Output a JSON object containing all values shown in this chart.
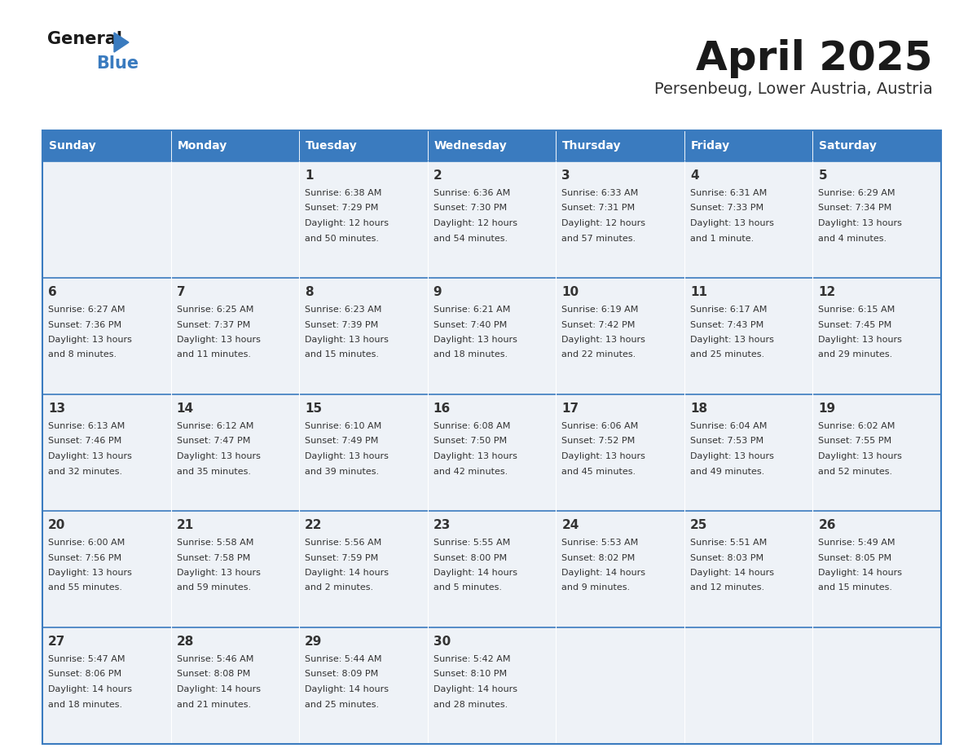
{
  "title": "April 2025",
  "subtitle": "Persenbeug, Lower Austria, Austria",
  "header_color": "#3a7bbf",
  "header_text_color": "#ffffff",
  "cell_bg_even": "#eef2f7",
  "cell_bg_odd": "#ffffff",
  "text_color": "#333333",
  "border_color": "#3a7bbf",
  "separator_color": "#4a86c8",
  "days_of_week": [
    "Sunday",
    "Monday",
    "Tuesday",
    "Wednesday",
    "Thursday",
    "Friday",
    "Saturday"
  ],
  "weeks": [
    [
      {
        "day": "",
        "info": ""
      },
      {
        "day": "",
        "info": ""
      },
      {
        "day": "1",
        "info": "Sunrise: 6:38 AM\nSunset: 7:29 PM\nDaylight: 12 hours\nand 50 minutes."
      },
      {
        "day": "2",
        "info": "Sunrise: 6:36 AM\nSunset: 7:30 PM\nDaylight: 12 hours\nand 54 minutes."
      },
      {
        "day": "3",
        "info": "Sunrise: 6:33 AM\nSunset: 7:31 PM\nDaylight: 12 hours\nand 57 minutes."
      },
      {
        "day": "4",
        "info": "Sunrise: 6:31 AM\nSunset: 7:33 PM\nDaylight: 13 hours\nand 1 minute."
      },
      {
        "day": "5",
        "info": "Sunrise: 6:29 AM\nSunset: 7:34 PM\nDaylight: 13 hours\nand 4 minutes."
      }
    ],
    [
      {
        "day": "6",
        "info": "Sunrise: 6:27 AM\nSunset: 7:36 PM\nDaylight: 13 hours\nand 8 minutes."
      },
      {
        "day": "7",
        "info": "Sunrise: 6:25 AM\nSunset: 7:37 PM\nDaylight: 13 hours\nand 11 minutes."
      },
      {
        "day": "8",
        "info": "Sunrise: 6:23 AM\nSunset: 7:39 PM\nDaylight: 13 hours\nand 15 minutes."
      },
      {
        "day": "9",
        "info": "Sunrise: 6:21 AM\nSunset: 7:40 PM\nDaylight: 13 hours\nand 18 minutes."
      },
      {
        "day": "10",
        "info": "Sunrise: 6:19 AM\nSunset: 7:42 PM\nDaylight: 13 hours\nand 22 minutes."
      },
      {
        "day": "11",
        "info": "Sunrise: 6:17 AM\nSunset: 7:43 PM\nDaylight: 13 hours\nand 25 minutes."
      },
      {
        "day": "12",
        "info": "Sunrise: 6:15 AM\nSunset: 7:45 PM\nDaylight: 13 hours\nand 29 minutes."
      }
    ],
    [
      {
        "day": "13",
        "info": "Sunrise: 6:13 AM\nSunset: 7:46 PM\nDaylight: 13 hours\nand 32 minutes."
      },
      {
        "day": "14",
        "info": "Sunrise: 6:12 AM\nSunset: 7:47 PM\nDaylight: 13 hours\nand 35 minutes."
      },
      {
        "day": "15",
        "info": "Sunrise: 6:10 AM\nSunset: 7:49 PM\nDaylight: 13 hours\nand 39 minutes."
      },
      {
        "day": "16",
        "info": "Sunrise: 6:08 AM\nSunset: 7:50 PM\nDaylight: 13 hours\nand 42 minutes."
      },
      {
        "day": "17",
        "info": "Sunrise: 6:06 AM\nSunset: 7:52 PM\nDaylight: 13 hours\nand 45 minutes."
      },
      {
        "day": "18",
        "info": "Sunrise: 6:04 AM\nSunset: 7:53 PM\nDaylight: 13 hours\nand 49 minutes."
      },
      {
        "day": "19",
        "info": "Sunrise: 6:02 AM\nSunset: 7:55 PM\nDaylight: 13 hours\nand 52 minutes."
      }
    ],
    [
      {
        "day": "20",
        "info": "Sunrise: 6:00 AM\nSunset: 7:56 PM\nDaylight: 13 hours\nand 55 minutes."
      },
      {
        "day": "21",
        "info": "Sunrise: 5:58 AM\nSunset: 7:58 PM\nDaylight: 13 hours\nand 59 minutes."
      },
      {
        "day": "22",
        "info": "Sunrise: 5:56 AM\nSunset: 7:59 PM\nDaylight: 14 hours\nand 2 minutes."
      },
      {
        "day": "23",
        "info": "Sunrise: 5:55 AM\nSunset: 8:00 PM\nDaylight: 14 hours\nand 5 minutes."
      },
      {
        "day": "24",
        "info": "Sunrise: 5:53 AM\nSunset: 8:02 PM\nDaylight: 14 hours\nand 9 minutes."
      },
      {
        "day": "25",
        "info": "Sunrise: 5:51 AM\nSunset: 8:03 PM\nDaylight: 14 hours\nand 12 minutes."
      },
      {
        "day": "26",
        "info": "Sunrise: 5:49 AM\nSunset: 8:05 PM\nDaylight: 14 hours\nand 15 minutes."
      }
    ],
    [
      {
        "day": "27",
        "info": "Sunrise: 5:47 AM\nSunset: 8:06 PM\nDaylight: 14 hours\nand 18 minutes."
      },
      {
        "day": "28",
        "info": "Sunrise: 5:46 AM\nSunset: 8:08 PM\nDaylight: 14 hours\nand 21 minutes."
      },
      {
        "day": "29",
        "info": "Sunrise: 5:44 AM\nSunset: 8:09 PM\nDaylight: 14 hours\nand 25 minutes."
      },
      {
        "day": "30",
        "info": "Sunrise: 5:42 AM\nSunset: 8:10 PM\nDaylight: 14 hours\nand 28 minutes."
      },
      {
        "day": "",
        "info": ""
      },
      {
        "day": "",
        "info": ""
      },
      {
        "day": "",
        "info": ""
      }
    ]
  ]
}
